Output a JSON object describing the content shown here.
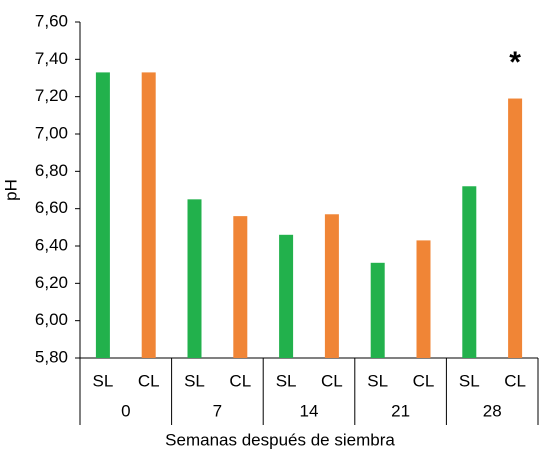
{
  "chart_data": {
    "type": "bar",
    "x_label": "Semanas después de siembra",
    "y_label": "pH",
    "categories": [
      "0",
      "7",
      "14",
      "21",
      "28"
    ],
    "series": [
      {
        "name": "SL",
        "color": "#22b14c",
        "values": [
          7.33,
          6.65,
          6.46,
          6.31,
          6.72
        ]
      },
      {
        "name": "CL",
        "color": "#f08536",
        "values": [
          7.33,
          6.56,
          6.57,
          6.43,
          7.19
        ]
      }
    ],
    "annotations": [
      "*"
    ],
    "ylim": [
      5.8,
      7.6
    ],
    "yticks": [
      {
        "value": 5.8,
        "label": "5,80"
      },
      {
        "value": 6.0,
        "label": "6,00"
      },
      {
        "value": 6.2,
        "label": "6,20"
      },
      {
        "value": 6.4,
        "label": "6,40"
      },
      {
        "value": 6.6,
        "label": "6,60"
      },
      {
        "value": 6.8,
        "label": "6,80"
      },
      {
        "value": 7.0,
        "label": "7,00"
      },
      {
        "value": 7.2,
        "label": "7,20"
      },
      {
        "value": 7.4,
        "label": "7,40"
      },
      {
        "value": 7.6,
        "label": "7,60"
      }
    ],
    "grid": false
  }
}
